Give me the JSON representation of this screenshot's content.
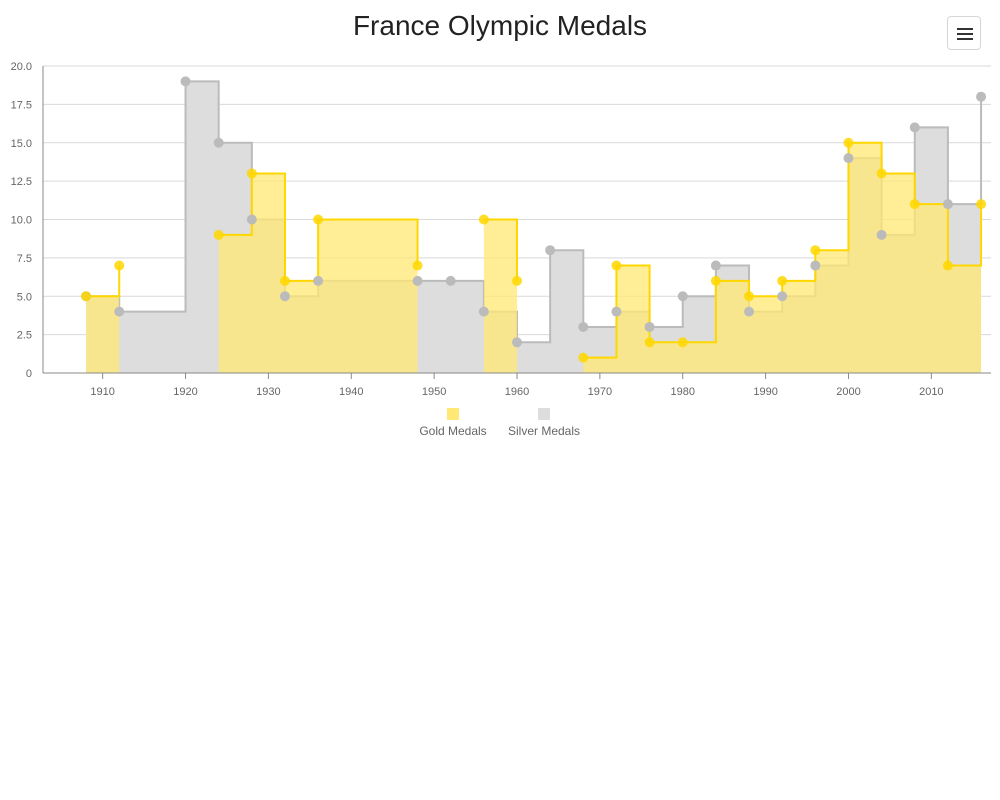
{
  "chart_data": {
    "type": "area",
    "step": true,
    "title": "France Olympic Medals",
    "xlabel": "",
    "ylabel": "",
    "x": [
      1908,
      1912,
      1920,
      1924,
      1928,
      1932,
      1936,
      1948,
      1952,
      1956,
      1960,
      1964,
      1968,
      1972,
      1976,
      1980,
      1984,
      1988,
      1992,
      1996,
      2000,
      2004,
      2008,
      2012,
      2016
    ],
    "xlim": [
      1902.8,
      2017.2
    ],
    "x_ticks": [
      1910,
      1920,
      1930,
      1940,
      1950,
      1960,
      1970,
      1980,
      1990,
      2000,
      2010
    ],
    "x_tick_labels": [
      "1910",
      "1920",
      "1930",
      "1940",
      "1950",
      "1960",
      "1970",
      "1980",
      "1990",
      "2000",
      "2010"
    ],
    "ylim": [
      0,
      20
    ],
    "y_ticks": [
      0,
      2.5,
      5,
      7.5,
      10,
      12.5,
      15,
      17.5,
      20
    ],
    "y_tick_labels": [
      "0",
      "2.5",
      "5.0",
      "7.5",
      "10.0",
      "12.5",
      "15.0",
      "17.5",
      "20.0"
    ],
    "grid": true,
    "legend_position": "bottom-center",
    "series": [
      {
        "name": "Gold Medals",
        "color": "#ffd700",
        "fill": "#ffe873",
        "values": [
          5,
          7,
          null,
          9,
          13,
          6,
          10,
          7,
          null,
          10,
          6,
          null,
          1,
          7,
          2,
          2,
          6,
          5,
          6,
          8,
          15,
          13,
          11,
          7,
          11
        ]
      },
      {
        "name": "Silver Medals",
        "color": "#bbbbbb",
        "fill": "#dddddd",
        "values": [
          5,
          4,
          19,
          15,
          10,
          5,
          6,
          6,
          6,
          4,
          2,
          8,
          3,
          4,
          3,
          5,
          7,
          4,
          5,
          7,
          14,
          9,
          16,
          11,
          18
        ]
      }
    ]
  },
  "menu": {
    "icon": "hamburger-menu-icon"
  }
}
